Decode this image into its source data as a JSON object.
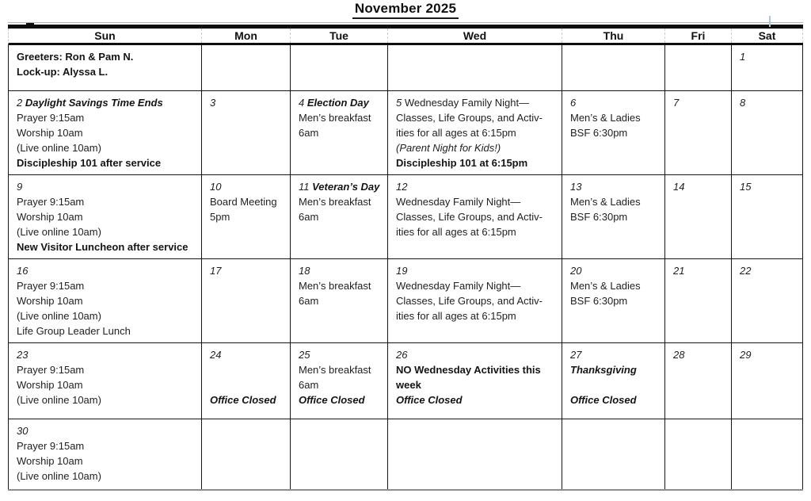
{
  "title": "November 2025",
  "weekday_headers": [
    "Sun",
    "Mon",
    "Tue",
    "Wed",
    "Thu",
    "Fri",
    "Sat"
  ],
  "colors": {
    "text": "#212121",
    "grid_border": "#161616",
    "thick_rule": "#0d0d0d",
    "bottom_rule_gray": "#8f8d89",
    "header_dash_gray": "#cfcdc8",
    "artifact_blue": "#a7c7e7"
  },
  "weeks": [
    [
      [
        [
          {
            "t": "Greeters: Ron & Pam N.",
            "s": "b"
          }
        ],
        [
          {
            "t": "Lock-up: Alyssa L.",
            "s": "b"
          }
        ]
      ],
      [],
      [],
      [],
      [],
      [],
      [
        [
          {
            "t": "1",
            "s": "i"
          }
        ]
      ]
    ],
    [
      [
        [
          {
            "t": "2 ",
            "s": "i"
          },
          {
            "t": "Daylight Savings Time Ends",
            "s": "bi"
          }
        ],
        [
          {
            "t": "Prayer 9:15am"
          }
        ],
        [
          {
            "t": "Worship 10am"
          }
        ],
        [
          {
            "t": "(Live online 10am)"
          }
        ],
        [
          {
            "t": "Discipleship 101 after service",
            "s": "b"
          }
        ]
      ],
      [
        [
          {
            "t": "3",
            "s": "i"
          }
        ]
      ],
      [
        [
          {
            "t": "4 ",
            "s": "i"
          },
          {
            "t": "Election Day",
            "s": "bi"
          }
        ],
        [
          {
            "t": "Men’s breakfast"
          }
        ],
        [
          {
            "t": "6am"
          }
        ]
      ],
      [
        [
          {
            "t": "5 ",
            "s": "i"
          },
          {
            "t": "Wednesday Family Night—"
          }
        ],
        [
          {
            "t": "Classes, Life Groups, and Activ-"
          }
        ],
        [
          {
            "t": "ities for all ages at 6:15pm"
          }
        ],
        [
          {
            "t": "(Parent Night for Kids!)",
            "s": "i"
          }
        ],
        [
          {
            "t": "Discipleship 101 at 6:15pm",
            "s": "b"
          }
        ]
      ],
      [
        [
          {
            "t": "6",
            "s": "i"
          }
        ],
        [
          {
            "t": "Men’s & Ladies"
          }
        ],
        [
          {
            "t": "BSF 6:30pm"
          }
        ]
      ],
      [
        [
          {
            "t": "7",
            "s": "i"
          }
        ]
      ],
      [
        [
          {
            "t": "8",
            "s": "i"
          }
        ]
      ]
    ],
    [
      [
        [
          {
            "t": "9",
            "s": "i"
          }
        ],
        [
          {
            "t": "Prayer 9:15am"
          }
        ],
        [
          {
            "t": "Worship 10am"
          }
        ],
        [
          {
            "t": "(Live online 10am)"
          }
        ],
        [
          {
            "t": "New Visitor Luncheon after service",
            "s": "b"
          }
        ]
      ],
      [
        [
          {
            "t": "10",
            "s": "i"
          }
        ],
        [
          {
            "t": "Board Meeting"
          }
        ],
        [
          {
            "t": "5pm"
          }
        ]
      ],
      [
        [
          {
            "t": "11 ",
            "s": "i"
          },
          {
            "t": "Veteran’s Day",
            "s": "bi"
          }
        ],
        [
          {
            "t": "Men’s breakfast"
          }
        ],
        [
          {
            "t": "6am"
          }
        ]
      ],
      [
        [
          {
            "t": "12",
            "s": "i"
          }
        ],
        [
          {
            "t": "Wednesday Family Night—"
          }
        ],
        [
          {
            "t": "Classes, Life Groups, and Activ-"
          }
        ],
        [
          {
            "t": "ities for all ages at 6:15pm"
          }
        ]
      ],
      [
        [
          {
            "t": "13",
            "s": "i"
          }
        ],
        [
          {
            "t": "Men’s & Ladies"
          }
        ],
        [
          {
            "t": "BSF 6:30pm"
          }
        ]
      ],
      [
        [
          {
            "t": "14",
            "s": "i"
          }
        ]
      ],
      [
        [
          {
            "t": "15",
            "s": "i"
          }
        ]
      ]
    ],
    [
      [
        [
          {
            "t": "16",
            "s": "i"
          }
        ],
        [
          {
            "t": "Prayer 9:15am"
          }
        ],
        [
          {
            "t": "Worship 10am"
          }
        ],
        [
          {
            "t": "(Live online 10am)"
          }
        ],
        [
          {
            "t": "Life Group Leader Lunch"
          }
        ]
      ],
      [
        [
          {
            "t": "17",
            "s": "i"
          }
        ]
      ],
      [
        [
          {
            "t": "18",
            "s": "i"
          }
        ],
        [
          {
            "t": "Men’s breakfast"
          }
        ],
        [
          {
            "t": "6am"
          }
        ]
      ],
      [
        [
          {
            "t": "19",
            "s": "i"
          }
        ],
        [
          {
            "t": "Wednesday Family Night—"
          }
        ],
        [
          {
            "t": "Classes, Life Groups, and Activ-"
          }
        ],
        [
          {
            "t": "ities for all ages at 6:15pm"
          }
        ]
      ],
      [
        [
          {
            "t": "20",
            "s": "i"
          }
        ],
        [
          {
            "t": "Men’s & Ladies"
          }
        ],
        [
          {
            "t": "BSF 6:30pm"
          }
        ]
      ],
      [
        [
          {
            "t": "21",
            "s": "i"
          }
        ]
      ],
      [
        [
          {
            "t": "22",
            "s": "i"
          }
        ]
      ]
    ],
    [
      [
        [
          {
            "t": "23",
            "s": "i"
          }
        ],
        [
          {
            "t": "Prayer 9:15am"
          }
        ],
        [
          {
            "t": "Worship 10am"
          }
        ],
        [
          {
            "t": "(Live online 10am)"
          }
        ]
      ],
      [
        [
          {
            "t": "24",
            "s": "i"
          }
        ],
        [],
        [],
        [
          {
            "t": "Office Closed",
            "s": "bi"
          }
        ]
      ],
      [
        [
          {
            "t": "25",
            "s": "i"
          }
        ],
        [
          {
            "t": "Men’s breakfast"
          }
        ],
        [
          {
            "t": "6am"
          }
        ],
        [
          {
            "t": "Office Closed",
            "s": "bi"
          }
        ]
      ],
      [
        [
          {
            "t": "26",
            "s": "i"
          }
        ],
        [
          {
            "t": "NO Wednesday Activities this",
            "s": "b"
          }
        ],
        [
          {
            "t": "week",
            "s": "b"
          }
        ],
        [
          {
            "t": "Office Closed",
            "s": "bi"
          }
        ]
      ],
      [
        [
          {
            "t": "27",
            "s": "i"
          }
        ],
        [
          {
            "t": "Thanksgiving",
            "s": "bi"
          }
        ],
        [],
        [
          {
            "t": "Office Closed",
            "s": "bi"
          }
        ]
      ],
      [
        [
          {
            "t": "28",
            "s": "i"
          }
        ]
      ],
      [
        [
          {
            "t": "29",
            "s": "i"
          }
        ]
      ]
    ],
    [
      [
        [
          {
            "t": "30",
            "s": "i"
          }
        ],
        [
          {
            "t": "Prayer 9:15am"
          }
        ],
        [
          {
            "t": "Worship 10am"
          }
        ],
        [
          {
            "t": "(Live online 10am)"
          }
        ]
      ],
      [],
      [],
      [],
      [],
      [],
      []
    ]
  ]
}
